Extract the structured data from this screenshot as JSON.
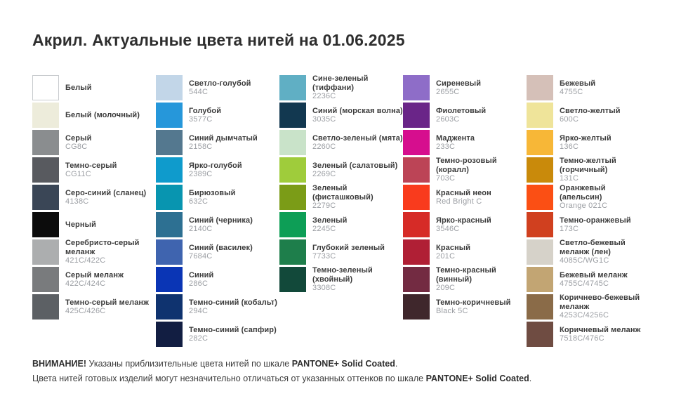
{
  "title": "Акрил. Актуальные цвета нитей на 01.06.2025",
  "footer": {
    "line1_bold1": "ВНИМАНИЕ!",
    "line1_text": " Указаны приблизительные цвета нитей по шкале ",
    "line1_bold2": "PANTONE+ Solid Coated",
    "line1_end": ".",
    "line2_text": "Цвета нитей готовых изделий могут незначительно отличаться от указанных оттенков по шкале ",
    "line2_bold": "PANTONE+ Solid Coated",
    "line2_end": "."
  },
  "chart_data": {
    "type": "table",
    "title": "Акрил. Актуальные цвета нитей на 01.06.2025",
    "description": "Color swatch chart: thread color name, Pantone code, swatch hex",
    "pantone_scale": "PANTONE+ Solid Coated",
    "columns": [
      [
        {
          "name": "Белый",
          "code": "",
          "hex": "#ffffff",
          "border": true
        },
        {
          "name": "Белый (молочный)",
          "code": "",
          "hex": "#edecdb"
        },
        {
          "name": "Серый",
          "code": "CG8C",
          "hex": "#8a8d8f"
        },
        {
          "name": "Темно-серый",
          "code": "CG11C",
          "hex": "#585a5f"
        },
        {
          "name": "Серо-синий (сланец)",
          "code": "4138C",
          "hex": "#3a4656"
        },
        {
          "name": "Черный",
          "code": "",
          "hex": "#0c0c0c"
        },
        {
          "name": "Серебристо-серый меланж",
          "code": "421C/422C",
          "hex": "#acaeaf"
        },
        {
          "name": "Серый меланж",
          "code": "422C/424C",
          "hex": "#797b7d"
        },
        {
          "name": "Темно-серый меланж",
          "code": "425C/426C",
          "hex": "#5c6064"
        }
      ],
      [
        {
          "name": "Светло-голубой",
          "code": "544C",
          "hex": "#c2d6e8"
        },
        {
          "name": "Голубой",
          "code": "3577C",
          "hex": "#2697da"
        },
        {
          "name": "Синий дымчатый",
          "code": "2158C",
          "hex": "#54788f"
        },
        {
          "name": "Ярко-голубой",
          "code": "2389C",
          "hex": "#0f9bcc"
        },
        {
          "name": "Бирюзовый",
          "code": "632C",
          "hex": "#0895b0"
        },
        {
          "name": "Синий (черника)",
          "code": "2140C",
          "hex": "#2d7092"
        },
        {
          "name": "Синий (василек)",
          "code": "7684C",
          "hex": "#3f64af"
        },
        {
          "name": "Синий",
          "code": "286C",
          "hex": "#0a35b5"
        },
        {
          "name": "Темно-синий (кобальт)",
          "code": "294C",
          "hex": "#0f336f"
        },
        {
          "name": "Темно-синий (сапфир)",
          "code": "282C",
          "hex": "#121e42"
        }
      ],
      [
        {
          "name": "Сине-зеленый (тиффани)",
          "code": "2236C",
          "hex": "#60afc4"
        },
        {
          "name": "Синий (морская волна)",
          "code": "3035C",
          "hex": "#123850"
        },
        {
          "name": "Светло-зеленый (мята)",
          "code": "2260C",
          "hex": "#c9e3c9"
        },
        {
          "name": "Зеленый (салатовый)",
          "code": "2269C",
          "hex": "#9fcc3b"
        },
        {
          "name": "Зеленый (фисташковый)",
          "code": "2279C",
          "hex": "#7b9c17"
        },
        {
          "name": "Зеленый",
          "code": "2245C",
          "hex": "#0d9e56"
        },
        {
          "name": "Глубокий зеленый",
          "code": "7733C",
          "hex": "#1e7e4b"
        },
        {
          "name": "Темно-зеленый (хвойный)",
          "code": "3308C",
          "hex": "#12493a"
        }
      ],
      [
        {
          "name": "Сиреневый",
          "code": "2655C",
          "hex": "#8e6dc8"
        },
        {
          "name": "Фиолетовый",
          "code": "2603C",
          "hex": "#6a2588"
        },
        {
          "name": "Маджента",
          "code": "233C",
          "hex": "#d60e8e"
        },
        {
          "name": "Темно-розовый (коралл)",
          "code": "703C",
          "hex": "#bc4456"
        },
        {
          "name": "Красный неон",
          "code": "Red Bright C",
          "hex": "#f93b1d"
        },
        {
          "name": "Ярко-красный",
          "code": "3546C",
          "hex": "#d62b27"
        },
        {
          "name": "Красный",
          "code": "201C",
          "hex": "#b01f35"
        },
        {
          "name": "Темно-красный (винный)",
          "code": "209C",
          "hex": "#732b42"
        },
        {
          "name": "Темно-коричневый",
          "code": "Black 5C",
          "hex": "#3f272c"
        }
      ],
      [
        {
          "name": "Бежевый",
          "code": "4755C",
          "hex": "#d5c0b8"
        },
        {
          "name": "Светло-желтый",
          "code": "600C",
          "hex": "#efe49a"
        },
        {
          "name": "Ярко-желтый",
          "code": "136C",
          "hex": "#f7b737"
        },
        {
          "name": "Темно-желтый (горчичный)",
          "code": "131C",
          "hex": "#c98a0b"
        },
        {
          "name": "Оранжевый (апельсин)",
          "code": "Orange 021C",
          "hex": "#fb4f14"
        },
        {
          "name": "Темно-оранжевый",
          "code": "173C",
          "hex": "#d0401f"
        },
        {
          "name": "Светло-бежевый меланж (лен)",
          "code": "4085C/WG1C",
          "hex": "#d6d2c9"
        },
        {
          "name": "Бежевый меланж",
          "code": "4755C/4745C",
          "hex": "#c2a573"
        },
        {
          "name": "Коричнево-бежевый меланж",
          "code": "4253C/4256C",
          "hex": "#8a6b48"
        },
        {
          "name": "Коричневый меланж",
          "code": "7518C/476C",
          "hex": "#6f4c42"
        }
      ]
    ]
  }
}
